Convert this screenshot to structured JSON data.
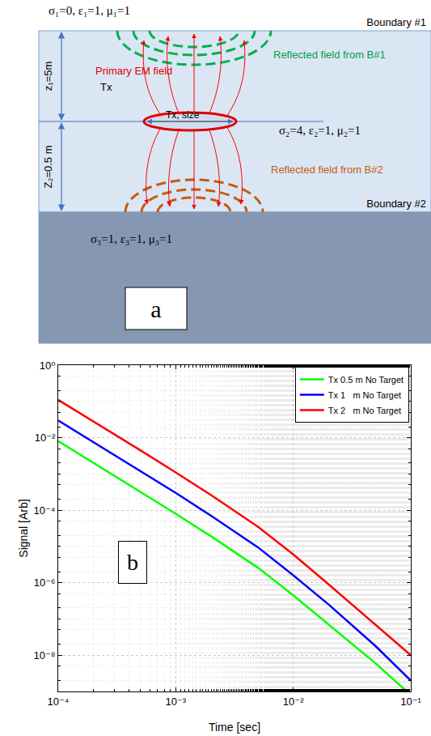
{
  "diagram": {
    "panel_label": "a",
    "top_medium": "σ₁=0, ε₁=1, μ₁=1",
    "boundary_1": "Boundary #1",
    "z1_label": "z₁=5m",
    "z2_label": "Z₂=0.5 m",
    "primary_label": "Primary EM field",
    "tx_label": "Tx",
    "tx_size_label": "Tx, size",
    "reflected_1": "Reflected field from B#1",
    "middle_medium": "σ₂=4, ε₂=1, μ₂=1",
    "reflected_2": "Reflected field from B#2",
    "boundary_2": "Boundary #2",
    "bottom_medium": "σ₃=1, ε₃=1, μ₃=1"
  },
  "chart_data": {
    "type": "line",
    "annotations": [
      "b"
    ],
    "x_label": "Time [sec]",
    "y_label": "Signal [Arb]",
    "x": [
      0.0001,
      0.0002,
      0.0005,
      0.001,
      0.002,
      0.005,
      0.01,
      0.02,
      0.05,
      0.1
    ],
    "series": [
      {
        "name": "Tx 0.5 m No Target",
        "color": "#00ff00",
        "values": [
          0.008,
          0.002,
          0.00032,
          8e-05,
          1.9e-05,
          2.6e-06,
          4.5e-07,
          7e-08,
          6e-09,
          8e-10
        ]
      },
      {
        "name": "Tx 1   m No Target",
        "color": "#0000ff",
        "values": [
          0.03,
          0.0075,
          0.0012,
          0.0003,
          7e-05,
          9.5e-06,
          1.6e-06,
          2.5e-07,
          1.8e-08,
          2e-09
        ]
      },
      {
        "name": "Tx 2   m No Target",
        "color": "#ff0000",
        "values": [
          0.11,
          0.028,
          0.0045,
          0.0011,
          0.00026,
          3.5e-05,
          6e-06,
          9e-07,
          7e-08,
          1e-08
        ]
      }
    ],
    "xlim": [
      0.0001,
      0.1
    ],
    "ylim": [
      1e-09,
      1
    ],
    "xticks": [
      {
        "value": 0.0001,
        "label": "10⁻⁴"
      },
      {
        "value": 0.001,
        "label": "10⁻³"
      },
      {
        "value": 0.01,
        "label": "10⁻²"
      },
      {
        "value": 0.1,
        "label": "10⁻¹"
      }
    ],
    "yticks": [
      {
        "value": 1e-08,
        "label": "10⁻⁸"
      },
      {
        "value": 1e-06,
        "label": "10⁻⁶"
      },
      {
        "value": 0.0001,
        "label": "10⁻⁴"
      },
      {
        "value": 0.01,
        "label": "10⁻²"
      },
      {
        "value": 1,
        "label": "10⁰"
      }
    ],
    "log": true,
    "grid": true,
    "legend": "upper right"
  }
}
